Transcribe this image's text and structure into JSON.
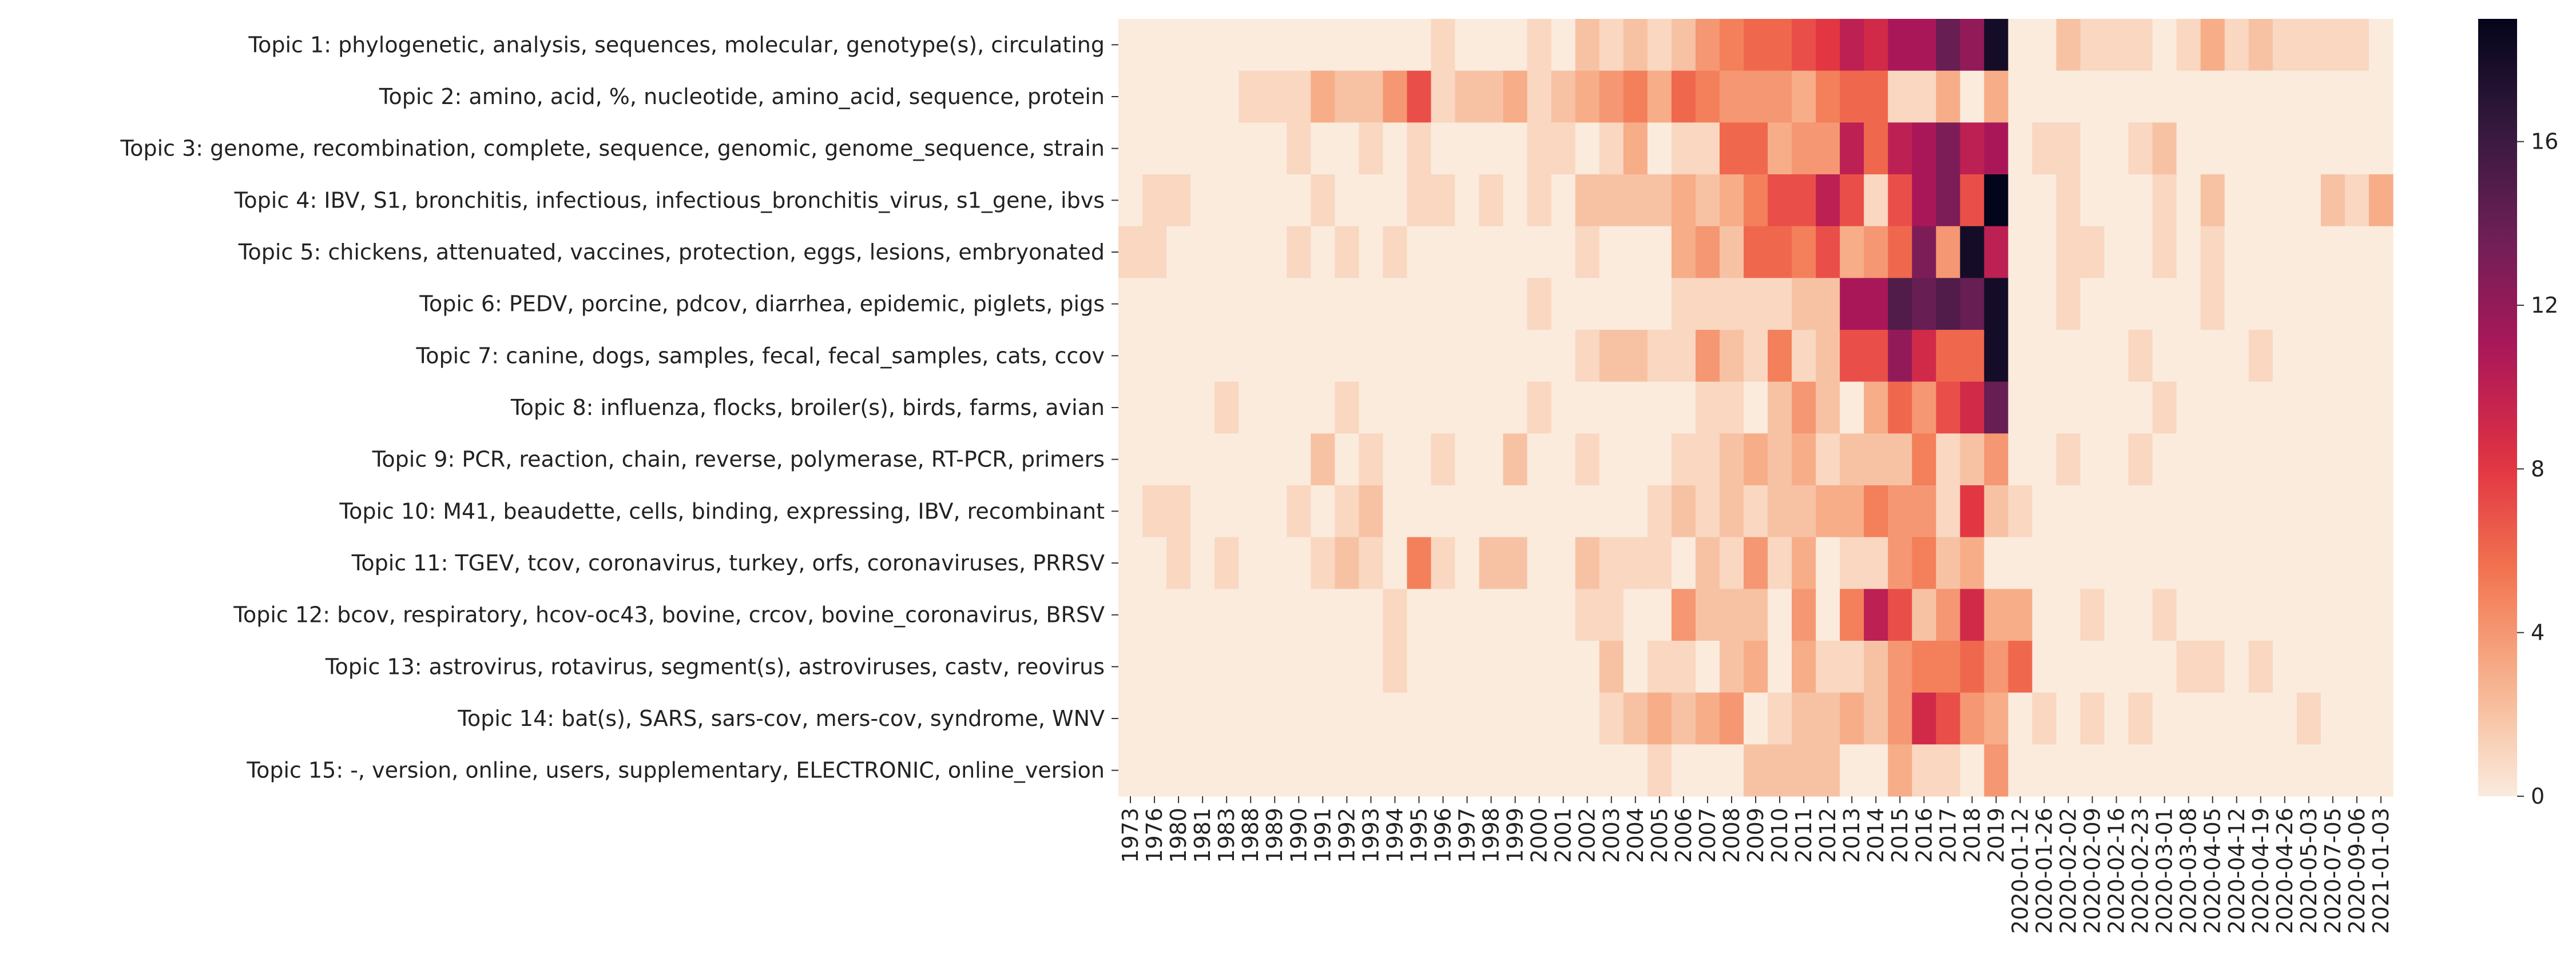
{
  "chart_data": {
    "type": "heatmap",
    "title": "",
    "xlabel": "",
    "ylabel": "",
    "rows": [
      "Topic 1: phylogenetic, analysis, sequences, molecular, genotype(s), circulating",
      "Topic 2: amino, acid, %, nucleotide, amino_acid, sequence, protein",
      "Topic 3: genome, recombination, complete, sequence, genomic, genome_sequence, strain",
      "Topic 4: IBV, S1, bronchitis, infectious, infectious_bronchitis_virus, s1_gene, ibvs",
      "Topic 5: chickens, attenuated, vaccines, protection, eggs, lesions, embryonated",
      "Topic 6: PEDV, porcine, pdcov, diarrhea, epidemic, piglets, pigs",
      "Topic 7: canine, dogs, samples, fecal, fecal_samples, cats, ccov",
      "Topic 8: influenza, flocks, broiler(s), birds, farms, avian",
      "Topic 9: PCR, reaction, chain, reverse, polymerase, RT-PCR, primers",
      "Topic 10: M41, beaudette, cells, binding, expressing, IBV, recombinant",
      "Topic 11: TGEV, tcov, coronavirus, turkey, orfs, coronaviruses, PRRSV",
      "Topic 12: bcov, respiratory, hcov-oc43, bovine, crcov, bovine_coronavirus, BRSV",
      "Topic 13: astrovirus, rotavirus, segment(s), astroviruses, castv, reovirus",
      "Topic 14: bat(s), SARS, sars-cov, mers-cov, syndrome, WNV",
      "Topic 15: -, version, online, users, supplementary, ELECTRONIC, online_version"
    ],
    "columns": [
      "1973",
      "1976",
      "1980",
      "1981",
      "1983",
      "1988",
      "1989",
      "1990",
      "1991",
      "1992",
      "1993",
      "1994",
      "1995",
      "1996",
      "1997",
      "1998",
      "1999",
      "2000",
      "2001",
      "2002",
      "2003",
      "2004",
      "2005",
      "2006",
      "2007",
      "2008",
      "2009",
      "2010",
      "2011",
      "2012",
      "2013",
      "2014",
      "2015",
      "2016",
      "2017",
      "2018",
      "2019",
      "2020-01-12",
      "2020-01-26",
      "2020-02-02",
      "2020-02-09",
      "2020-02-16",
      "2020-02-23",
      "2020-03-01",
      "2020-03-08",
      "2020-04-05",
      "2020-04-12",
      "2020-04-19",
      "2020-04-26",
      "2020-05-03",
      "2020-07-05",
      "2020-09-06",
      "2021-01-03"
    ],
    "values": [
      [
        0,
        0,
        0,
        0,
        0,
        0,
        0,
        0,
        0,
        0,
        0,
        0,
        0,
        1,
        0,
        0,
        0,
        1,
        0,
        2,
        1,
        2,
        1,
        2,
        4,
        5,
        6,
        6,
        7,
        8,
        10,
        9,
        11,
        11,
        14,
        12,
        18,
        0,
        0,
        2,
        1,
        1,
        1,
        0,
        1,
        3,
        1,
        2,
        1,
        1,
        1,
        1,
        0
      ],
      [
        0,
        0,
        0,
        0,
        0,
        1,
        1,
        1,
        3,
        2,
        2,
        4,
        7,
        1,
        2,
        2,
        3,
        1,
        2,
        3,
        4,
        5,
        3,
        6,
        5,
        4,
        4,
        4,
        3,
        5,
        6,
        6,
        1,
        1,
        3,
        0,
        3,
        0,
        0,
        0,
        0,
        0,
        0,
        0,
        0,
        0,
        0,
        0,
        0,
        0,
        0,
        0,
        0
      ],
      [
        0,
        0,
        0,
        0,
        0,
        0,
        0,
        1,
        0,
        0,
        1,
        0,
        1,
        0,
        0,
        0,
        0,
        1,
        1,
        0,
        1,
        3,
        0,
        1,
        1,
        6,
        6,
        3,
        4,
        4,
        10,
        6,
        10,
        11,
        13,
        10,
        11,
        0,
        1,
        1,
        0,
        0,
        1,
        2,
        0,
        0,
        0,
        0,
        0,
        0,
        0,
        0,
        0
      ],
      [
        0,
        1,
        1,
        0,
        0,
        0,
        0,
        0,
        1,
        0,
        0,
        0,
        1,
        1,
        0,
        1,
        0,
        1,
        0,
        2,
        2,
        2,
        2,
        3,
        2,
        3,
        5,
        7,
        7,
        10,
        7,
        1,
        7,
        11,
        13,
        7,
        19,
        0,
        0,
        1,
        0,
        0,
        0,
        1,
        0,
        2,
        0,
        0,
        0,
        0,
        2,
        1,
        3
      ],
      [
        1,
        1,
        0,
        0,
        0,
        0,
        0,
        1,
        0,
        1,
        0,
        1,
        0,
        0,
        0,
        0,
        0,
        0,
        0,
        1,
        0,
        0,
        0,
        3,
        4,
        2,
        6,
        6,
        5,
        7,
        3,
        4,
        6,
        13,
        4,
        18,
        10,
        0,
        0,
        1,
        1,
        0,
        0,
        1,
        0,
        1,
        0,
        0,
        0,
        0,
        0,
        0,
        0
      ],
      [
        0,
        0,
        0,
        0,
        0,
        0,
        0,
        0,
        0,
        0,
        0,
        0,
        0,
        0,
        0,
        0,
        0,
        1,
        0,
        0,
        0,
        0,
        0,
        1,
        1,
        1,
        1,
        1,
        2,
        2,
        11,
        11,
        15,
        14,
        15,
        14,
        18,
        0,
        0,
        1,
        0,
        0,
        0,
        0,
        0,
        1,
        0,
        0,
        0,
        0,
        0,
        0,
        0
      ],
      [
        0,
        0,
        0,
        0,
        0,
        0,
        0,
        0,
        0,
        0,
        0,
        0,
        0,
        0,
        0,
        0,
        0,
        0,
        0,
        1,
        2,
        2,
        1,
        1,
        4,
        2,
        1,
        5,
        1,
        2,
        7,
        7,
        12,
        9,
        6,
        6,
        18,
        0,
        0,
        0,
        0,
        0,
        1,
        0,
        0,
        0,
        0,
        1,
        0,
        0,
        0,
        0,
        0
      ],
      [
        0,
        0,
        0,
        0,
        1,
        0,
        0,
        0,
        0,
        1,
        0,
        0,
        0,
        0,
        0,
        0,
        0,
        1,
        0,
        0,
        0,
        0,
        0,
        0,
        1,
        1,
        0,
        2,
        4,
        2,
        0,
        3,
        6,
        4,
        7,
        9,
        14,
        0,
        0,
        0,
        0,
        0,
        0,
        1,
        0,
        0,
        0,
        0,
        0,
        0,
        0,
        0,
        0
      ],
      [
        0,
        0,
        0,
        0,
        0,
        0,
        0,
        0,
        2,
        0,
        1,
        0,
        0,
        1,
        0,
        0,
        2,
        0,
        0,
        1,
        0,
        0,
        0,
        1,
        1,
        2,
        3,
        2,
        3,
        1,
        2,
        2,
        2,
        5,
        1,
        2,
        4,
        0,
        0,
        1,
        0,
        0,
        1,
        0,
        0,
        0,
        0,
        0,
        0,
        0,
        0,
        0,
        0
      ],
      [
        0,
        1,
        1,
        0,
        0,
        0,
        0,
        1,
        0,
        1,
        2,
        0,
        0,
        0,
        0,
        0,
        0,
        0,
        0,
        0,
        0,
        0,
        1,
        2,
        1,
        2,
        1,
        2,
        2,
        3,
        3,
        5,
        4,
        4,
        1,
        8,
        2,
        1,
        0,
        0,
        0,
        0,
        0,
        0,
        0,
        0,
        0,
        0,
        0,
        0,
        0,
        0,
        0
      ],
      [
        0,
        0,
        1,
        0,
        1,
        0,
        0,
        0,
        1,
        2,
        1,
        0,
        5,
        1,
        0,
        2,
        2,
        0,
        0,
        2,
        1,
        1,
        1,
        0,
        2,
        1,
        4,
        1,
        3,
        0,
        1,
        1,
        4,
        5,
        2,
        3,
        0,
        0,
        0,
        0,
        0,
        0,
        0,
        0,
        0,
        0,
        0,
        0,
        0,
        0,
        0,
        0,
        0
      ],
      [
        0,
        0,
        0,
        0,
        0,
        0,
        0,
        0,
        0,
        0,
        0,
        1,
        0,
        0,
        0,
        0,
        0,
        0,
        0,
        1,
        1,
        0,
        0,
        4,
        2,
        2,
        2,
        0,
        4,
        0,
        5,
        10,
        7,
        2,
        4,
        9,
        3,
        3,
        0,
        0,
        1,
        0,
        0,
        1,
        0,
        0,
        0,
        0,
        0,
        0,
        0,
        0,
        0
      ],
      [
        0,
        0,
        0,
        0,
        0,
        0,
        0,
        0,
        0,
        0,
        0,
        1,
        0,
        0,
        0,
        0,
        0,
        0,
        0,
        0,
        2,
        0,
        1,
        1,
        0,
        2,
        3,
        0,
        3,
        1,
        1,
        2,
        4,
        5,
        5,
        6,
        4,
        6,
        0,
        0,
        0,
        0,
        0,
        0,
        1,
        1,
        0,
        1,
        0,
        0,
        0,
        0,
        0
      ],
      [
        0,
        0,
        0,
        0,
        0,
        0,
        0,
        0,
        0,
        0,
        0,
        0,
        0,
        0,
        0,
        0,
        0,
        0,
        0,
        0,
        1,
        2,
        3,
        2,
        3,
        4,
        0,
        1,
        2,
        2,
        3,
        2,
        4,
        9,
        7,
        4,
        3,
        0,
        1,
        0,
        1,
        0,
        1,
        0,
        0,
        0,
        0,
        0,
        0,
        1,
        0,
        0,
        0
      ],
      [
        0,
        0,
        0,
        0,
        0,
        0,
        0,
        0,
        0,
        0,
        0,
        0,
        0,
        0,
        0,
        0,
        0,
        0,
        0,
        0,
        0,
        0,
        1,
        0,
        0,
        0,
        2,
        2,
        2,
        2,
        0,
        0,
        3,
        1,
        1,
        0,
        4,
        0,
        0,
        0,
        0,
        0,
        0,
        0,
        0,
        0,
        0,
        0,
        0,
        0,
        0,
        0,
        0
      ]
    ],
    "colorbar": {
      "min": 0,
      "max": 19,
      "ticks": [
        0,
        4,
        8,
        12,
        16
      ],
      "colormap": "rocket_r",
      "stops": [
        "#faebdd",
        "#f6b48f",
        "#f37651",
        "#e13342",
        "#ad1759",
        "#701f57",
        "#35193e",
        "#03051a"
      ]
    },
    "grid": false,
    "legend": "colorbar-right"
  }
}
